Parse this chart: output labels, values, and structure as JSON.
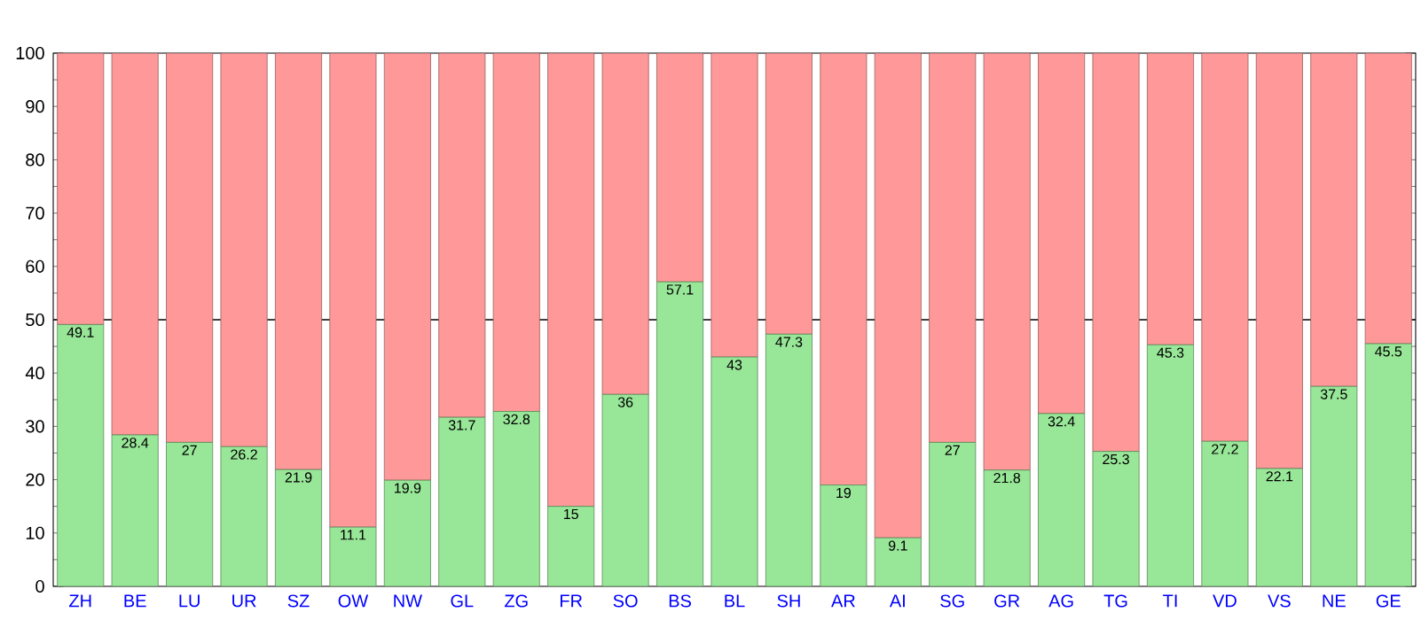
{
  "chart_data": {
    "type": "bar",
    "stacked": true,
    "categories": [
      "ZH",
      "BE",
      "LU",
      "UR",
      "SZ",
      "OW",
      "NW",
      "GL",
      "ZG",
      "FR",
      "SO",
      "BS",
      "BL",
      "SH",
      "AR",
      "AI",
      "SG",
      "GR",
      "AG",
      "TG",
      "TI",
      "VD",
      "VS",
      "NE",
      "GE"
    ],
    "series": [
      {
        "color": "#98e698",
        "values": [
          49.1,
          28.4,
          27,
          26.2,
          21.9,
          11.1,
          19.9,
          31.7,
          32.8,
          15,
          36,
          57.1,
          43,
          47.3,
          19,
          9.1,
          27,
          21.8,
          32.4,
          25.3,
          45.3,
          27.2,
          22.1,
          37.5,
          45.5
        ],
        "value_labels": [
          "49.1",
          "28.4",
          "27",
          "26.2",
          "21.9",
          "11.1",
          "19.9",
          "31.7",
          "32.8",
          "15",
          "36",
          "57.1",
          "43",
          "47.3",
          "19",
          "9.1",
          "27",
          "21.8",
          "32.4",
          "25.3",
          "45.3",
          "27.2",
          "22.1",
          "37.5",
          "45.5"
        ]
      },
      {
        "color": "#ff9999",
        "values": [
          50.9,
          71.6,
          73,
          73.8,
          78.1,
          88.9,
          80.1,
          68.3,
          67.2,
          85,
          64,
          42.9,
          57,
          52.7,
          81,
          90.9,
          73,
          78.2,
          67.6,
          74.7,
          54.7,
          72.8,
          77.9,
          62.5,
          54.5
        ]
      }
    ],
    "ylim": [
      0,
      100
    ],
    "yticks": [
      0,
      10,
      20,
      30,
      40,
      50,
      60,
      70,
      80,
      90,
      100
    ],
    "ref_lines": [
      {
        "axis": "y",
        "value": 50,
        "color": "#000000"
      }
    ],
    "grid": false
  }
}
